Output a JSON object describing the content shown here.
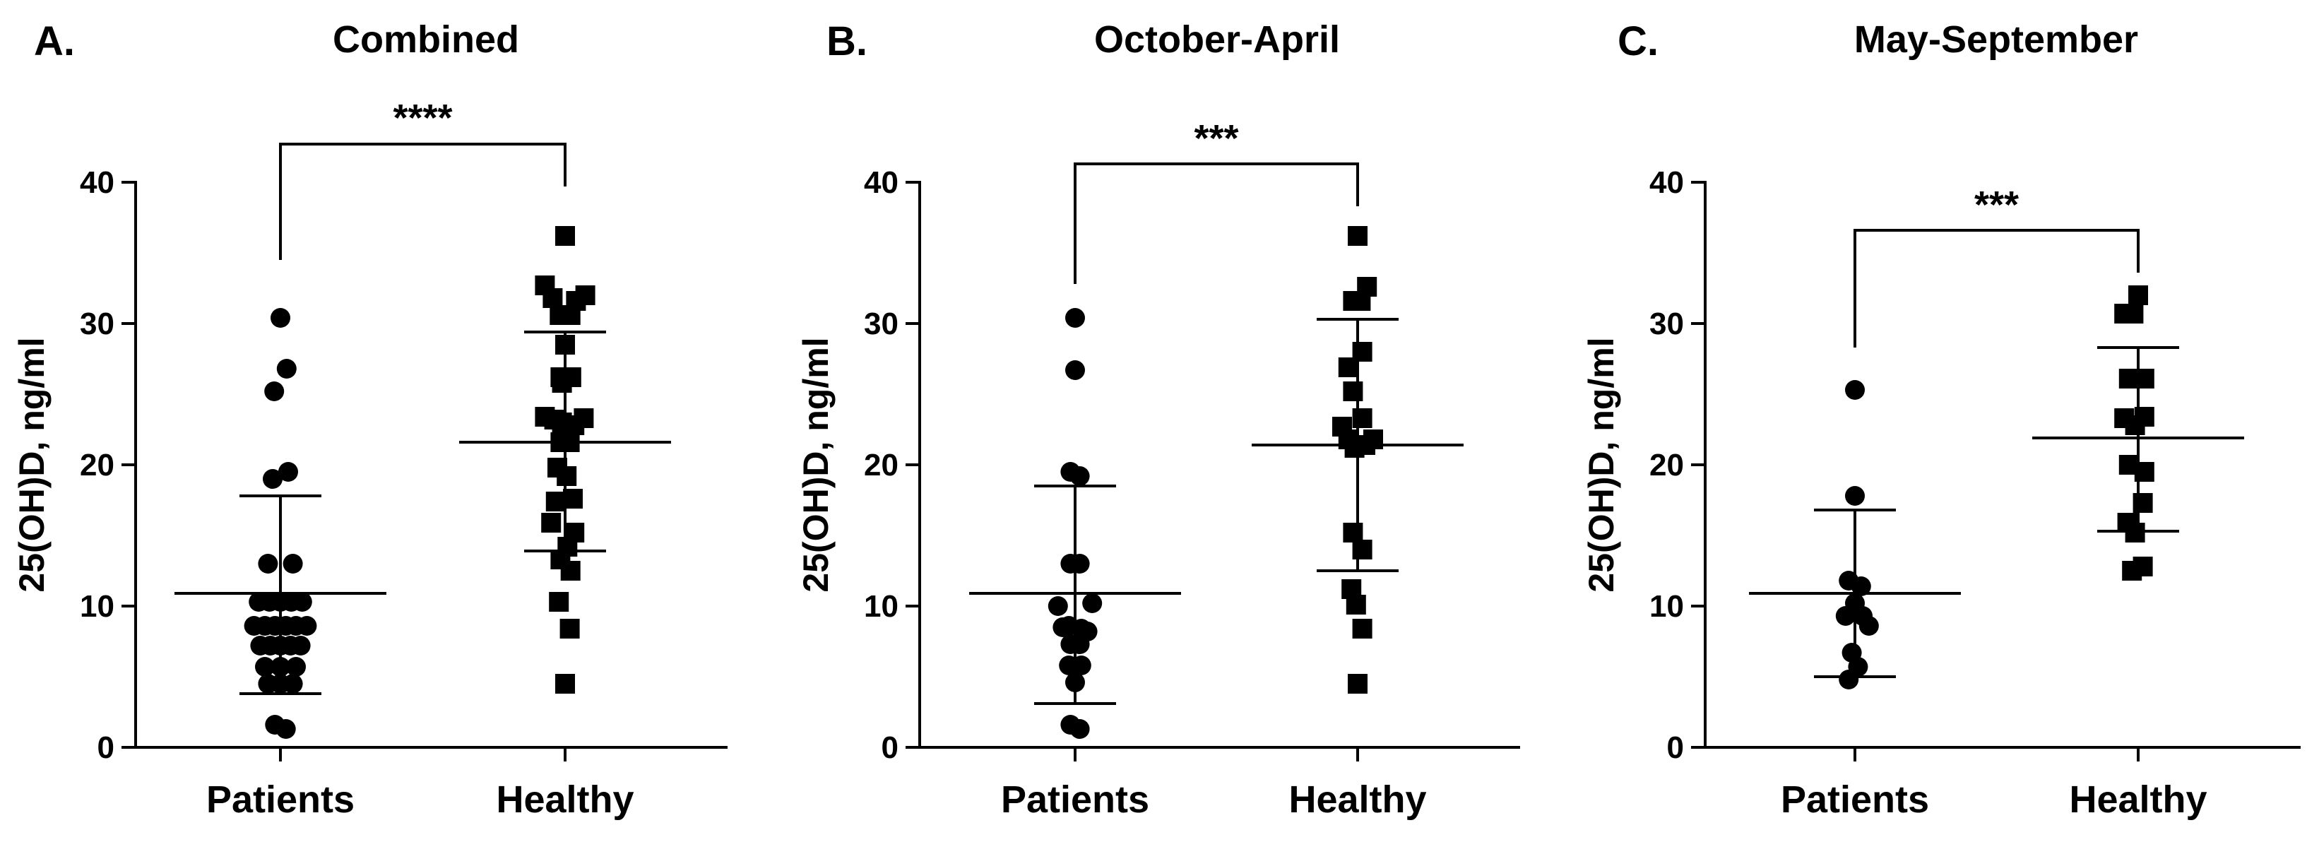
{
  "chart_data": [
    {
      "type": "scatter",
      "panel_label": "A.",
      "title": "Combined",
      "xlabel": "",
      "ylabel": "25(OH)D, ng/ml",
      "ylim": [
        0,
        40
      ],
      "yticks": [
        "0",
        "10",
        "20",
        "30",
        "40"
      ],
      "categories": [
        "Patients",
        "Healthy"
      ],
      "significance": "****",
      "series": [
        {
          "name": "Patients",
          "marker": "circle",
          "mean": 10.9,
          "sd_low": 3.8,
          "sd_high": 17.8,
          "points": [
            {
              "dx": 0,
              "y": 30.4
            },
            {
              "dx": 0.4,
              "y": 26.8
            },
            {
              "dx": -0.4,
              "y": 25.2
            },
            {
              "dx": -0.5,
              "y": 19.0
            },
            {
              "dx": 0.5,
              "y": 19.5
            },
            {
              "dx": -0.8,
              "y": 13.0
            },
            {
              "dx": 0.8,
              "y": 13.0
            },
            {
              "dx": -1.4,
              "y": 10.3
            },
            {
              "dx": -0.7,
              "y": 10.3
            },
            {
              "dx": 0,
              "y": 10.3
            },
            {
              "dx": 0.7,
              "y": 10.3
            },
            {
              "dx": 1.4,
              "y": 10.3
            },
            {
              "dx": -1.7,
              "y": 8.6
            },
            {
              "dx": -1.0,
              "y": 8.6
            },
            {
              "dx": -0.35,
              "y": 8.6
            },
            {
              "dx": 0.35,
              "y": 8.6
            },
            {
              "dx": 1.0,
              "y": 8.6
            },
            {
              "dx": 1.7,
              "y": 8.6
            },
            {
              "dx": -1.3,
              "y": 7.2
            },
            {
              "dx": -0.65,
              "y": 7.2
            },
            {
              "dx": 0,
              "y": 7.2
            },
            {
              "dx": 0.65,
              "y": 7.2
            },
            {
              "dx": 1.3,
              "y": 7.2
            },
            {
              "dx": -1.0,
              "y": 5.7
            },
            {
              "dx": 0,
              "y": 5.7
            },
            {
              "dx": 1.0,
              "y": 5.7
            },
            {
              "dx": -0.8,
              "y": 4.5
            },
            {
              "dx": 0,
              "y": 4.5
            },
            {
              "dx": 0.8,
              "y": 4.5
            },
            {
              "dx": -0.35,
              "y": 1.6
            },
            {
              "dx": 0.35,
              "y": 1.3
            }
          ]
        },
        {
          "name": "Healthy",
          "marker": "square",
          "mean": 21.6,
          "sd_low": 13.9,
          "sd_high": 29.4,
          "points": [
            {
              "dx": 0,
              "y": 36.2
            },
            {
              "dx": -1.3,
              "y": 32.7
            },
            {
              "dx": 1.3,
              "y": 32.0
            },
            {
              "dx": -0.8,
              "y": 31.8
            },
            {
              "dx": 0.7,
              "y": 31.6
            },
            {
              "dx": -0.35,
              "y": 30.6
            },
            {
              "dx": 0.35,
              "y": 30.6
            },
            {
              "dx": 0,
              "y": 28.5
            },
            {
              "dx": -0.3,
              "y": 26.2
            },
            {
              "dx": 0.4,
              "y": 26.2
            },
            {
              "dx": -0.2,
              "y": 25.8
            },
            {
              "dx": -1.3,
              "y": 23.4
            },
            {
              "dx": -0.7,
              "y": 23.2
            },
            {
              "dx": -0.2,
              "y": 23.0
            },
            {
              "dx": 0.6,
              "y": 22.8
            },
            {
              "dx": 1.2,
              "y": 23.3
            },
            {
              "dx": -0.3,
              "y": 21.6
            },
            {
              "dx": 0.3,
              "y": 21.6
            },
            {
              "dx": -0.5,
              "y": 19.8
            },
            {
              "dx": 0.1,
              "y": 19.2
            },
            {
              "dx": -0.6,
              "y": 17.4
            },
            {
              "dx": 0.5,
              "y": 17.6
            },
            {
              "dx": -0.9,
              "y": 15.9
            },
            {
              "dx": 0.6,
              "y": 15.2
            },
            {
              "dx": 0.15,
              "y": 14.2
            },
            {
              "dx": -0.3,
              "y": 13.3
            },
            {
              "dx": 0.35,
              "y": 12.5
            },
            {
              "dx": -0.4,
              "y": 10.3
            },
            {
              "dx": 0.3,
              "y": 8.4
            },
            {
              "dx": 0,
              "y": 4.5
            }
          ]
        }
      ]
    },
    {
      "type": "scatter",
      "panel_label": "B.",
      "title": "October-April",
      "xlabel": "",
      "ylabel": "25(OH)D, ng/ml",
      "ylim": [
        0,
        40
      ],
      "yticks": [
        "0",
        "10",
        "20",
        "30",
        "40"
      ],
      "categories": [
        "Patients",
        "Healthy"
      ],
      "significance": "***",
      "series": [
        {
          "name": "Patients",
          "marker": "circle",
          "mean": 10.9,
          "sd_low": 3.1,
          "sd_high": 18.5,
          "points": [
            {
              "dx": 0,
              "y": 30.4
            },
            {
              "dx": 0,
              "y": 26.7
            },
            {
              "dx": -0.3,
              "y": 19.5
            },
            {
              "dx": 0.3,
              "y": 19.2
            },
            {
              "dx": -0.3,
              "y": 13.0
            },
            {
              "dx": 0.3,
              "y": 13.0
            },
            {
              "dx": -1.1,
              "y": 10.0
            },
            {
              "dx": 1.1,
              "y": 10.2
            },
            {
              "dx": -0.8,
              "y": 8.5
            },
            {
              "dx": -0.4,
              "y": 8.6
            },
            {
              "dx": 0.4,
              "y": 8.4
            },
            {
              "dx": 0.8,
              "y": 8.2
            },
            {
              "dx": -0.3,
              "y": 7.3
            },
            {
              "dx": 0.3,
              "y": 7.3
            },
            {
              "dx": -0.4,
              "y": 5.8
            },
            {
              "dx": 0.4,
              "y": 5.8
            },
            {
              "dx": 0,
              "y": 4.6
            },
            {
              "dx": -0.3,
              "y": 1.6
            },
            {
              "dx": 0.3,
              "y": 1.3
            }
          ]
        },
        {
          "name": "Healthy",
          "marker": "square",
          "mean": 21.4,
          "sd_low": 12.5,
          "sd_high": 30.3,
          "points": [
            {
              "dx": 0,
              "y": 36.2
            },
            {
              "dx": 0.6,
              "y": 32.6
            },
            {
              "dx": -0.3,
              "y": 31.6
            },
            {
              "dx": 0.2,
              "y": 31.6
            },
            {
              "dx": 0.3,
              "y": 28.0
            },
            {
              "dx": -0.6,
              "y": 26.9
            },
            {
              "dx": -0.3,
              "y": 25.2
            },
            {
              "dx": -1.0,
              "y": 22.7
            },
            {
              "dx": 0.3,
              "y": 23.3
            },
            {
              "dx": -0.6,
              "y": 21.8
            },
            {
              "dx": 1.0,
              "y": 21.8
            },
            {
              "dx": -0.2,
              "y": 21.2
            },
            {
              "dx": 0.5,
              "y": 21.4
            },
            {
              "dx": -0.3,
              "y": 15.2
            },
            {
              "dx": 0.3,
              "y": 14.0
            },
            {
              "dx": -0.4,
              "y": 11.2
            },
            {
              "dx": -0.1,
              "y": 10.1
            },
            {
              "dx": 0.3,
              "y": 8.4
            },
            {
              "dx": 0,
              "y": 4.5
            }
          ]
        }
      ]
    },
    {
      "type": "scatter",
      "panel_label": "C.",
      "title": "May-September",
      "xlabel": "",
      "ylabel": "25(OH)D, ng/ml",
      "ylim": [
        0,
        40
      ],
      "yticks": [
        "0",
        "10",
        "20",
        "30",
        "40"
      ],
      "categories": [
        "Patients",
        "Healthy"
      ],
      "significance": "***",
      "series": [
        {
          "name": "Patients",
          "marker": "circle",
          "mean": 10.9,
          "sd_low": 5.0,
          "sd_high": 16.8,
          "points": [
            {
              "dx": 0,
              "y": 25.3
            },
            {
              "dx": 0,
              "y": 17.8
            },
            {
              "dx": -0.4,
              "y": 11.8
            },
            {
              "dx": 0.4,
              "y": 11.4
            },
            {
              "dx": 0,
              "y": 10.2
            },
            {
              "dx": -0.6,
              "y": 9.3
            },
            {
              "dx": 0.5,
              "y": 9.3
            },
            {
              "dx": 0.9,
              "y": 8.6
            },
            {
              "dx": -0.2,
              "y": 6.7
            },
            {
              "dx": 0.2,
              "y": 5.7
            },
            {
              "dx": -0.4,
              "y": 4.8
            }
          ]
        },
        {
          "name": "Healthy",
          "marker": "square",
          "mean": 21.9,
          "sd_low": 15.3,
          "sd_high": 28.3,
          "points": [
            {
              "dx": 0,
              "y": 32.0
            },
            {
              "dx": -0.9,
              "y": 30.7
            },
            {
              "dx": -0.3,
              "y": 30.7
            },
            {
              "dx": -0.6,
              "y": 26.1
            },
            {
              "dx": 0.4,
              "y": 26.1
            },
            {
              "dx": -0.9,
              "y": 23.3
            },
            {
              "dx": 0.4,
              "y": 23.4
            },
            {
              "dx": -0.2,
              "y": 22.8
            },
            {
              "dx": -0.6,
              "y": 20.0
            },
            {
              "dx": 0.4,
              "y": 19.5
            },
            {
              "dx": 0.3,
              "y": 17.3
            },
            {
              "dx": -0.7,
              "y": 15.9
            },
            {
              "dx": -0.2,
              "y": 15.2
            },
            {
              "dx": -0.4,
              "y": 12.5
            },
            {
              "dx": 0.3,
              "y": 12.8
            }
          ]
        }
      ]
    }
  ]
}
